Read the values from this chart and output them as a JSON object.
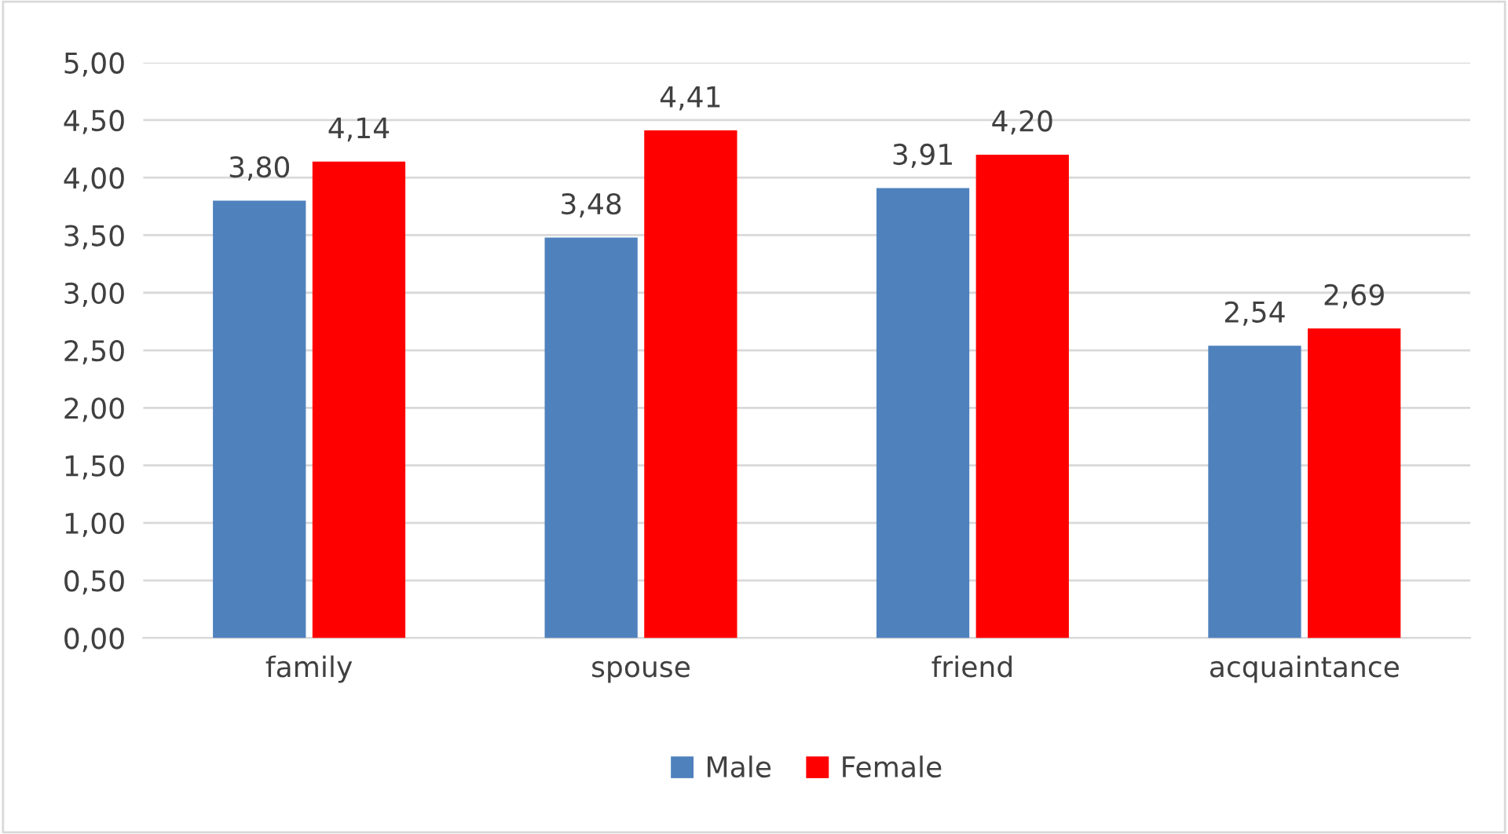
{
  "chart_data": {
    "type": "bar",
    "categories": [
      "family",
      "spouse",
      "friend",
      "acquaintance"
    ],
    "series": [
      {
        "name": "Male",
        "color": "#4f81bd",
        "values": [
          3.8,
          3.48,
          3.91,
          2.54
        ],
        "value_labels": [
          "3,80",
          "3,48",
          "3,91",
          "2,54"
        ]
      },
      {
        "name": "Female",
        "color": "#ff0000",
        "values": [
          4.14,
          4.41,
          4.2,
          2.69
        ],
        "value_labels": [
          "4,14",
          "4,41",
          "4,20",
          "2,69"
        ]
      }
    ],
    "ylim": [
      0,
      5
    ],
    "yticks": [
      {
        "value": 0,
        "label": "0,00"
      },
      {
        "value": 0.5,
        "label": "0,50"
      },
      {
        "value": 1,
        "label": "1,00"
      },
      {
        "value": 1.5,
        "label": "1,50"
      },
      {
        "value": 2,
        "label": "2,00"
      },
      {
        "value": 2.5,
        "label": "2,50"
      },
      {
        "value": 3,
        "label": "3,00"
      },
      {
        "value": 3.5,
        "label": "3,50"
      },
      {
        "value": 4,
        "label": "4,00"
      },
      {
        "value": 4.5,
        "label": "4,50"
      },
      {
        "value": 5,
        "label": "5,00"
      }
    ],
    "grid": "y",
    "legend": "bottom"
  }
}
